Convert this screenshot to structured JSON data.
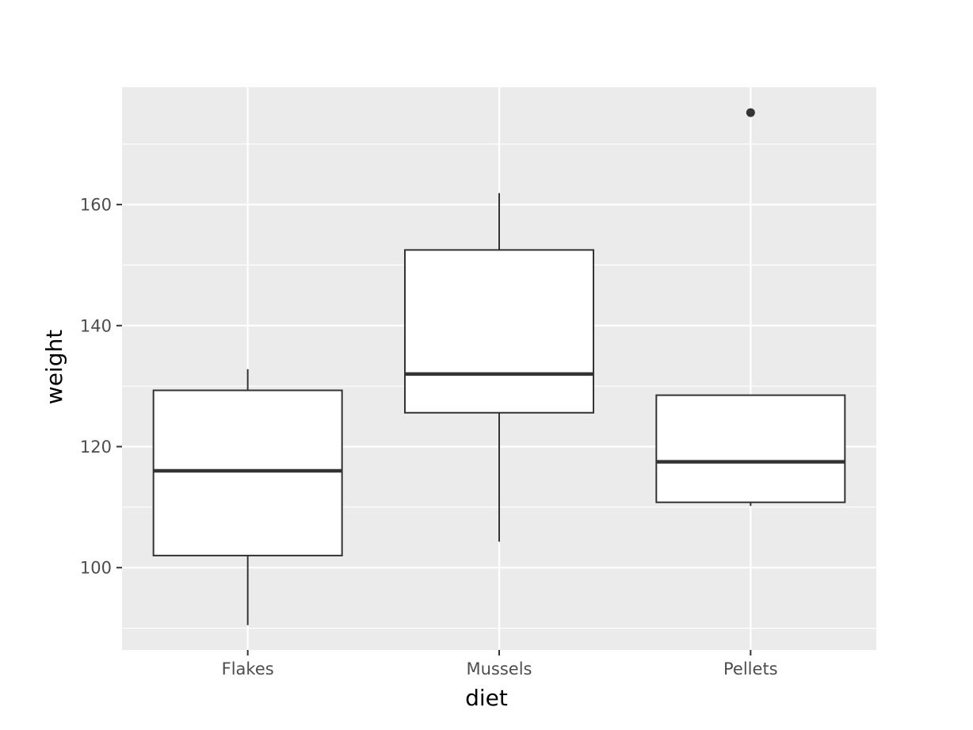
{
  "chart_data": {
    "type": "boxplot",
    "xlabel": "diet",
    "ylabel": "weight",
    "categories": [
      "Flakes",
      "Mussels",
      "Pellets"
    ],
    "boxes": [
      {
        "category": "Flakes",
        "whisker_low": 90.5,
        "q1": 102.0,
        "median": 116.0,
        "q3": 129.3,
        "whisker_high": 132.8,
        "outliers": []
      },
      {
        "category": "Mussels",
        "whisker_low": 104.3,
        "q1": 125.6,
        "median": 132.0,
        "q3": 152.5,
        "whisker_high": 161.9,
        "outliers": []
      },
      {
        "category": "Pellets",
        "whisker_low": 110.2,
        "q1": 110.8,
        "median": 117.5,
        "q3": 128.5,
        "whisker_high": 128.5,
        "outliers": [
          175.2
        ]
      }
    ],
    "yticks": [
      100,
      120,
      140,
      160
    ],
    "ylim": [
      86.4,
      179.4
    ],
    "grid": true,
    "colors": {
      "panel": "#ebebeb",
      "grid": "#ffffff",
      "box_fill": "#ffffff",
      "box_stroke": "#333333",
      "tick_text": "#4d4d4d"
    }
  }
}
